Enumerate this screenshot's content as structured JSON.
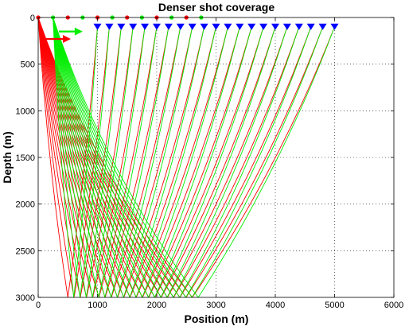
{
  "figure": {
    "title": "Denser shot coverage",
    "xlabel": "Position (m)",
    "ylabel": "Depth (m)"
  },
  "chart_data": {
    "type": "line",
    "title": "Denser shot coverage",
    "xlabel": "Position (m)",
    "ylabel": "Depth (m)",
    "xlim": [
      0,
      6000
    ],
    "ylim": [
      0,
      3000
    ],
    "y_inverted": true,
    "xticks": [
      0,
      1000,
      2000,
      3000,
      4000,
      5000,
      6000
    ],
    "yticks": [
      0,
      500,
      1000,
      1500,
      2000,
      2500,
      3000
    ],
    "grid": true,
    "grid_style": "dotted",
    "receivers": {
      "marker": "blue-triangle-down",
      "depth": 100,
      "x": [
        1000,
        1200,
        1400,
        1600,
        1800,
        2000,
        2200,
        2400,
        2600,
        2800,
        3000,
        3200,
        3400,
        3600,
        3800,
        4000,
        4200,
        4400,
        4600,
        4800,
        5000
      ],
      "color": "#0000ff"
    },
    "sources": {
      "marker": "dot",
      "depth": 0,
      "red_x": [
        0,
        500,
        1000,
        1500,
        2000,
        2500
      ],
      "green_x": [
        250,
        750,
        1250,
        1750,
        2250,
        2750
      ],
      "red_color": "#ff0000",
      "green_color": "#00ee00"
    },
    "ray_fans": [
      {
        "color": "#ff0000",
        "origin_x": 0,
        "origin_depth": 0,
        "turning_x": [
          500,
          2600
        ],
        "receiver_x_range": [
          1000,
          5000
        ],
        "depth": 3000
      },
      {
        "color": "#00ee00",
        "origin_x": 250,
        "origin_depth": 0,
        "turning_x": [
          600,
          2700
        ],
        "receiver_x_range": [
          1000,
          5000
        ],
        "depth": 3000
      }
    ],
    "arrows": [
      {
        "color": "#00ee00",
        "from_x": 350,
        "to_x": 750,
        "depth": 150
      },
      {
        "color": "#ff0000",
        "from_x": 120,
        "to_x": 550,
        "depth": 230
      }
    ]
  }
}
